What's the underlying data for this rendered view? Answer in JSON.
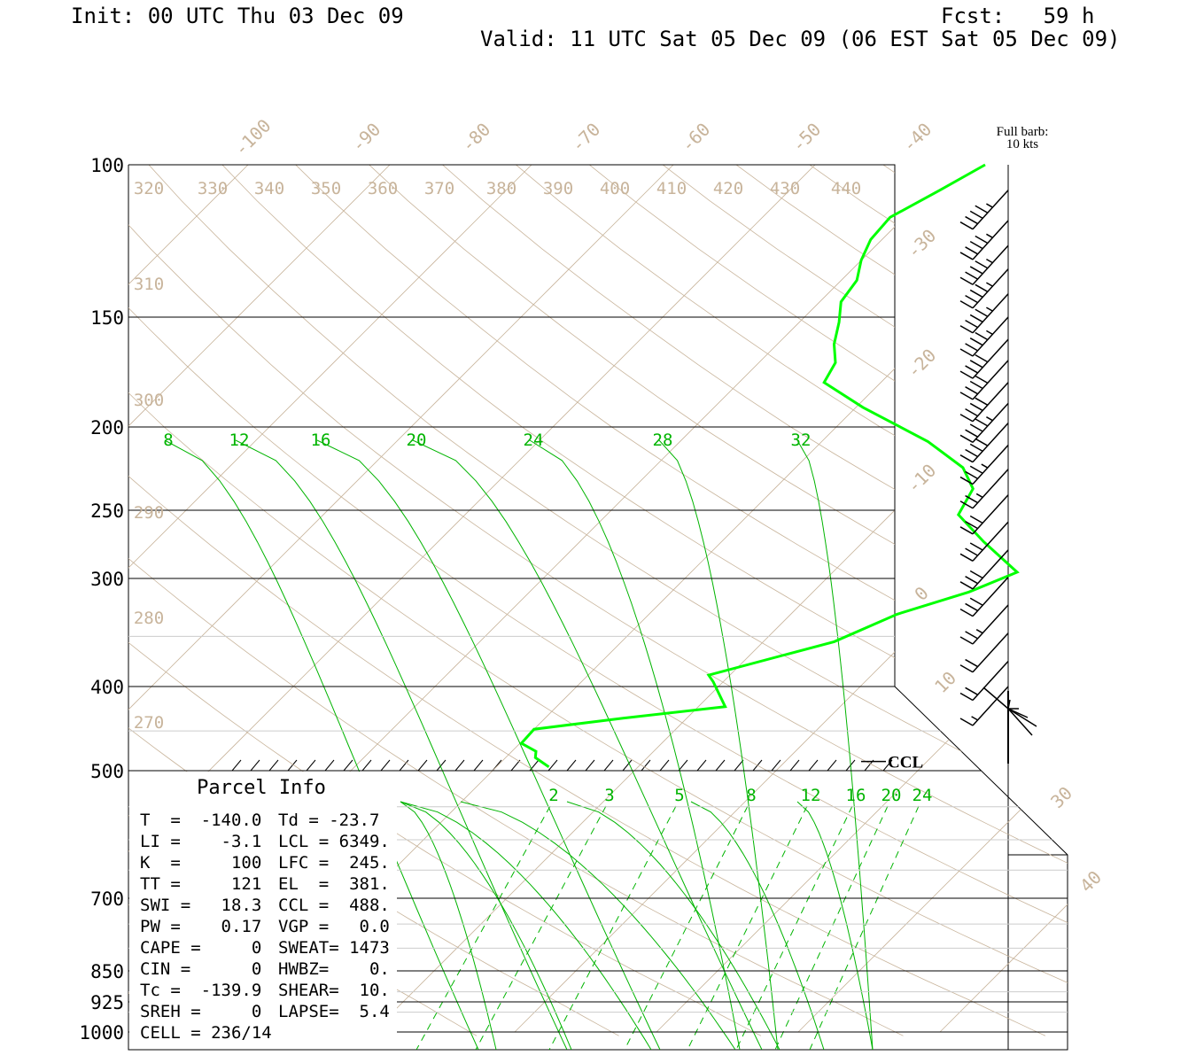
{
  "header": {
    "init": "Init: 00 UTC Thu 03 Dec 09",
    "fcst": "Fcst:   59 h",
    "valid": "Valid: 11 UTC Sat 05 Dec 09 (06 EST Sat 05 Dec 09)"
  },
  "barb_legend": {
    "line1": "Full barb:",
    "line2": "10 kts"
  },
  "colors": {
    "frame": "#000000",
    "isotherm": "#c8b49b",
    "theta_label": "#c8b49b",
    "mixing_ratio": "#00b400",
    "profile": "#00ff00",
    "wind_barb": "#000000"
  },
  "chart_data": {
    "type": "skew-t log-p sounding",
    "pressure_levels": [
      100,
      150,
      200,
      250,
      300,
      400,
      500,
      700,
      850,
      925,
      1000
    ],
    "pressure_labels": [
      "100",
      "150",
      "200",
      "250",
      "300",
      "400",
      "500",
      "700",
      "850",
      "925",
      "1000"
    ],
    "temperature_labels": [
      "-100",
      "-90",
      "-80",
      "-70",
      "-60",
      "-50",
      "-40",
      "-30",
      "-20",
      "-10",
      "0",
      "10",
      "30",
      "40"
    ],
    "theta_labels_top": [
      "320",
      "330",
      "340",
      "350",
      "360",
      "370",
      "380",
      "390",
      "400",
      "410",
      "420",
      "430",
      "440"
    ],
    "theta_labels_left": [
      "310",
      "300",
      "290",
      "280",
      "270"
    ],
    "mixing_ratio_labels_upper": [
      "8",
      "12",
      "16",
      "20",
      "24",
      "28",
      "32"
    ],
    "mixing_ratio_labels_lower": [
      "2",
      "3",
      "5",
      "8",
      "12",
      "16",
      "20",
      "24"
    ],
    "profile": [
      {
        "p": 100,
        "t": -38.0
      },
      {
        "p": 107,
        "t": -39.4
      },
      {
        "p": 115,
        "t": -41.0
      },
      {
        "p": 122,
        "t": -40.8
      },
      {
        "p": 129,
        "t": -40.0
      },
      {
        "p": 136,
        "t": -38.9
      },
      {
        "p": 144,
        "t": -38.5
      },
      {
        "p": 152,
        "t": -37.2
      },
      {
        "p": 161,
        "t": -36.0
      },
      {
        "p": 169,
        "t": -34.6
      },
      {
        "p": 178,
        "t": -34.0
      },
      {
        "p": 190,
        "t": -29.5
      },
      {
        "p": 208,
        "t": -22.5
      },
      {
        "p": 223,
        "t": -18.2
      },
      {
        "p": 236,
        "t": -16.0
      },
      {
        "p": 253,
        "t": -15.2
      },
      {
        "p": 272,
        "t": -11.5
      },
      {
        "p": 295,
        "t": -7.0
      },
      {
        "p": 311,
        "t": -9.0
      },
      {
        "p": 330,
        "t": -12.5
      },
      {
        "p": 355,
        "t": -15.0
      },
      {
        "p": 388,
        "t": -21.5
      },
      {
        "p": 395,
        "t": -20.7
      },
      {
        "p": 422,
        "t": -18.1
      },
      {
        "p": 435,
        "t": -24.5
      },
      {
        "p": 448,
        "t": -30.0
      },
      {
        "p": 465,
        "t": -29.9
      },
      {
        "p": 475,
        "t": -28.3
      },
      {
        "p": 483,
        "t": -27.9
      },
      {
        "p": 495,
        "t": -26.3
      }
    ],
    "annotations": {
      "ccl_label": "CCL",
      "ccl_pressure": 488
    },
    "wind_barbs": [
      {
        "p": 107,
        "speed": 45
      },
      {
        "p": 116,
        "speed": 45
      },
      {
        "p": 124,
        "speed": 45
      },
      {
        "p": 132,
        "speed": 45
      },
      {
        "p": 141,
        "speed": 45
      },
      {
        "p": 150,
        "speed": 45
      },
      {
        "p": 159,
        "speed": 40
      },
      {
        "p": 168,
        "speed": 40
      },
      {
        "p": 178,
        "speed": 40
      },
      {
        "p": 188,
        "speed": 45
      },
      {
        "p": 198,
        "speed": 40
      },
      {
        "p": 210,
        "speed": 35
      },
      {
        "p": 224,
        "speed": 25
      },
      {
        "p": 240,
        "speed": 30
      },
      {
        "p": 258,
        "speed": 30
      },
      {
        "p": 278,
        "speed": 30
      },
      {
        "p": 299,
        "speed": 30
      },
      {
        "p": 322,
        "speed": 25
      },
      {
        "p": 347,
        "speed": 20
      },
      {
        "p": 374,
        "speed": 20
      },
      {
        "p": 400,
        "speed": 15
      }
    ],
    "parcel_info": {
      "title": "Parcel Info",
      "rows": [
        [
          "T  =  -140.0",
          "Td = -23.7"
        ],
        [
          "LI =    -3.1",
          "LCL = 6349."
        ],
        [
          "K  =     100",
          "LFC =  245."
        ],
        [
          "TT =     121",
          "EL  =  381."
        ],
        [
          "SWI =   18.3",
          "CCL =  488."
        ],
        [
          "PW =    0.17",
          "VGP =   0.0"
        ],
        [
          "CAPE =     0",
          "SWEAT= 1473"
        ],
        [
          "CIN =      0",
          "HWBZ=    0."
        ],
        [
          "Tc =  -139.9",
          "SHEAR=  10."
        ],
        [
          "SREH =     0",
          "LAPSE=  5.4"
        ],
        [
          "CELL = 236/14",
          ""
        ]
      ]
    }
  }
}
